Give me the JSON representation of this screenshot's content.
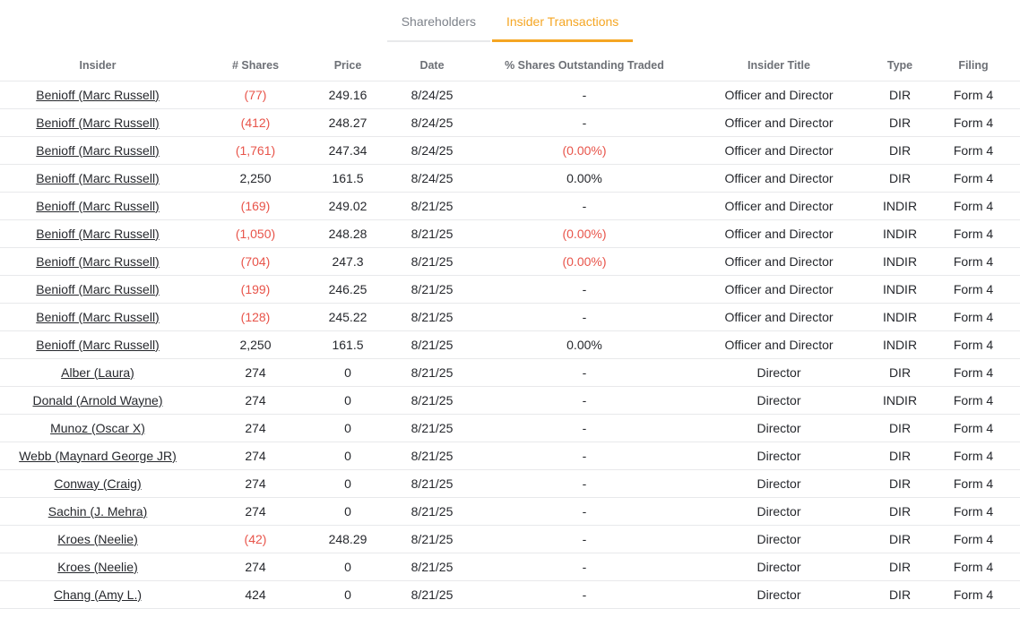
{
  "tabs": [
    {
      "label": "Shareholders"
    },
    {
      "label": "Insider Transactions"
    }
  ],
  "active_tab": "Insider Transactions",
  "table": {
    "columns": [
      "Insider",
      "# Shares",
      "Price",
      "Date",
      "% Shares Outstanding Traded",
      "Insider Title",
      "Type",
      "Filing"
    ],
    "rows": [
      {
        "insider": "Benioff (Marc Russell)",
        "shares": "(77)",
        "shares_neg": true,
        "price": "249.16",
        "date": "8/24/25",
        "pct": "-",
        "pct_neg": false,
        "title": "Officer and Director",
        "type": "DIR",
        "filing": "Form 4"
      },
      {
        "insider": "Benioff (Marc Russell)",
        "shares": "(412)",
        "shares_neg": true,
        "price": "248.27",
        "date": "8/24/25",
        "pct": "-",
        "pct_neg": false,
        "title": "Officer and Director",
        "type": "DIR",
        "filing": "Form 4"
      },
      {
        "insider": "Benioff (Marc Russell)",
        "shares": "(1,761)",
        "shares_neg": true,
        "price": "247.34",
        "date": "8/24/25",
        "pct": "(0.00%)",
        "pct_neg": true,
        "title": "Officer and Director",
        "type": "DIR",
        "filing": "Form 4"
      },
      {
        "insider": "Benioff (Marc Russell)",
        "shares": "2,250",
        "shares_neg": false,
        "price": "161.5",
        "date": "8/24/25",
        "pct": "0.00%",
        "pct_neg": false,
        "title": "Officer and Director",
        "type": "DIR",
        "filing": "Form 4"
      },
      {
        "insider": "Benioff (Marc Russell)",
        "shares": "(169)",
        "shares_neg": true,
        "price": "249.02",
        "date": "8/21/25",
        "pct": "-",
        "pct_neg": false,
        "title": "Officer and Director",
        "type": "INDIR",
        "filing": "Form 4"
      },
      {
        "insider": "Benioff (Marc Russell)",
        "shares": "(1,050)",
        "shares_neg": true,
        "price": "248.28",
        "date": "8/21/25",
        "pct": "(0.00%)",
        "pct_neg": true,
        "title": "Officer and Director",
        "type": "INDIR",
        "filing": "Form 4"
      },
      {
        "insider": "Benioff (Marc Russell)",
        "shares": "(704)",
        "shares_neg": true,
        "price": "247.3",
        "date": "8/21/25",
        "pct": "(0.00%)",
        "pct_neg": true,
        "title": "Officer and Director",
        "type": "INDIR",
        "filing": "Form 4"
      },
      {
        "insider": "Benioff (Marc Russell)",
        "shares": "(199)",
        "shares_neg": true,
        "price": "246.25",
        "date": "8/21/25",
        "pct": "-",
        "pct_neg": false,
        "title": "Officer and Director",
        "type": "INDIR",
        "filing": "Form 4"
      },
      {
        "insider": "Benioff (Marc Russell)",
        "shares": "(128)",
        "shares_neg": true,
        "price": "245.22",
        "date": "8/21/25",
        "pct": "-",
        "pct_neg": false,
        "title": "Officer and Director",
        "type": "INDIR",
        "filing": "Form 4"
      },
      {
        "insider": "Benioff (Marc Russell)",
        "shares": "2,250",
        "shares_neg": false,
        "price": "161.5",
        "date": "8/21/25",
        "pct": "0.00%",
        "pct_neg": false,
        "title": "Officer and Director",
        "type": "INDIR",
        "filing": "Form 4"
      },
      {
        "insider": "Alber (Laura)",
        "shares": "274",
        "shares_neg": false,
        "price": "0",
        "date": "8/21/25",
        "pct": "-",
        "pct_neg": false,
        "title": "Director",
        "type": "DIR",
        "filing": "Form 4"
      },
      {
        "insider": "Donald (Arnold Wayne)",
        "shares": "274",
        "shares_neg": false,
        "price": "0",
        "date": "8/21/25",
        "pct": "-",
        "pct_neg": false,
        "title": "Director",
        "type": "INDIR",
        "filing": "Form 4"
      },
      {
        "insider": "Munoz (Oscar X)",
        "shares": "274",
        "shares_neg": false,
        "price": "0",
        "date": "8/21/25",
        "pct": "-",
        "pct_neg": false,
        "title": "Director",
        "type": "DIR",
        "filing": "Form 4"
      },
      {
        "insider": "Webb (Maynard George JR)",
        "shares": "274",
        "shares_neg": false,
        "price": "0",
        "date": "8/21/25",
        "pct": "-",
        "pct_neg": false,
        "title": "Director",
        "type": "DIR",
        "filing": "Form 4"
      },
      {
        "insider": "Conway (Craig)",
        "shares": "274",
        "shares_neg": false,
        "price": "0",
        "date": "8/21/25",
        "pct": "-",
        "pct_neg": false,
        "title": "Director",
        "type": "DIR",
        "filing": "Form 4"
      },
      {
        "insider": "Sachin (J. Mehra)",
        "shares": "274",
        "shares_neg": false,
        "price": "0",
        "date": "8/21/25",
        "pct": "-",
        "pct_neg": false,
        "title": "Director",
        "type": "DIR",
        "filing": "Form 4"
      },
      {
        "insider": "Kroes (Neelie)",
        "shares": "(42)",
        "shares_neg": true,
        "price": "248.29",
        "date": "8/21/25",
        "pct": "-",
        "pct_neg": false,
        "title": "Director",
        "type": "DIR",
        "filing": "Form 4"
      },
      {
        "insider": "Kroes (Neelie)",
        "shares": "274",
        "shares_neg": false,
        "price": "0",
        "date": "8/21/25",
        "pct": "-",
        "pct_neg": false,
        "title": "Director",
        "type": "DIR",
        "filing": "Form 4"
      },
      {
        "insider": "Chang (Amy L.)",
        "shares": "424",
        "shares_neg": false,
        "price": "0",
        "date": "8/21/25",
        "pct": "-",
        "pct_neg": false,
        "title": "Director",
        "type": "DIR",
        "filing": "Form 4"
      }
    ]
  },
  "colors": {
    "accent_orange": "#f5a623",
    "negative_red": "#e8544a",
    "header_gray": "#6d7076",
    "text_dark": "#26282d",
    "border_gray": "#e8e9eb",
    "inactive_tab_gray": "#7d828a"
  }
}
